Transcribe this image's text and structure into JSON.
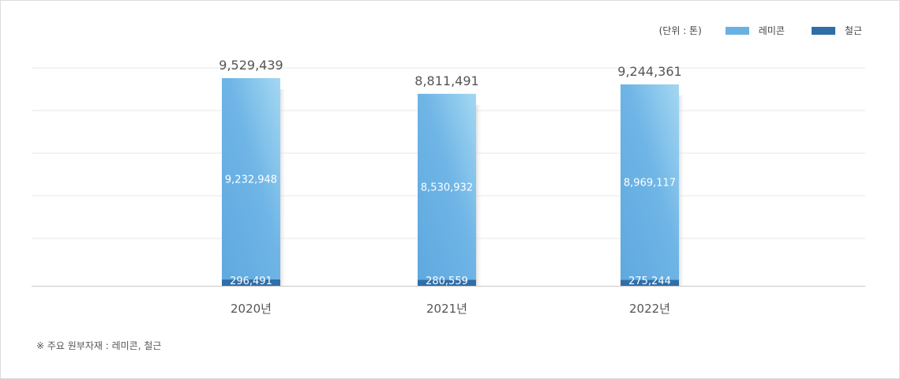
{
  "chart_data": {
    "type": "bar",
    "stacked": true,
    "categories": [
      "2020년",
      "2021년",
      "2022년"
    ],
    "series": [
      {
        "name": "철근",
        "color": "#2f6ea8",
        "values": [
          296491,
          280559,
          275244
        ]
      },
      {
        "name": "레미콘",
        "color": "#6ab1e3",
        "values": [
          9232948,
          8530932,
          8969117
        ]
      }
    ],
    "totals": [
      9529439,
      8811491,
      9244361
    ],
    "labels": {
      "totals": [
        "9,529,439",
        "8,811,491",
        "9,244,361"
      ],
      "레미콘": [
        "9,232,948",
        "8,530,932",
        "8,969,117"
      ],
      "철근": [
        "296,491",
        "280,559",
        "275,244"
      ]
    },
    "unit_label": "(단위 : 톤)",
    "ylim": [
      0,
      10000000
    ],
    "grid": true,
    "legend_position": "top-right"
  },
  "legend": {
    "unit": "(단위 : 톤)",
    "items": [
      {
        "label": "레미콘",
        "color": "#6ab1e3"
      },
      {
        "label": "철근",
        "color": "#2f6ea8"
      }
    ]
  },
  "note": "※ 주요 원부자재 : 레미콘, 철근"
}
